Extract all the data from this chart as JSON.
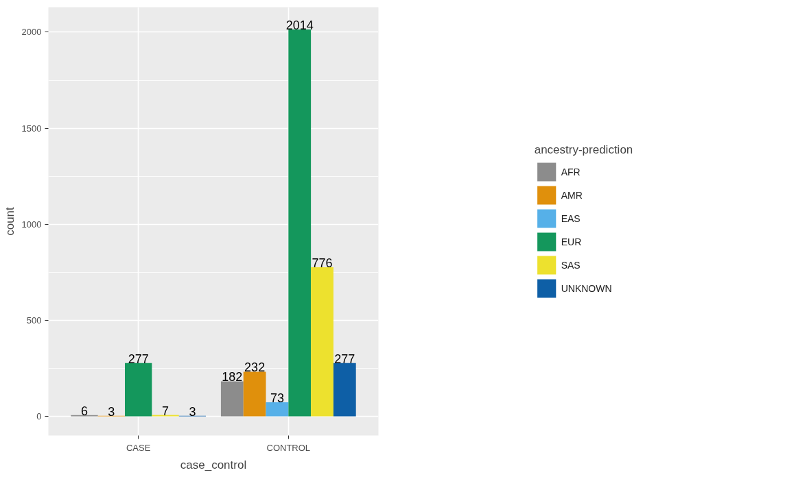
{
  "chart_data": {
    "type": "bar",
    "xlabel": "case_control",
    "ylabel": "count",
    "legend_title": "ancestry-prediction",
    "categories": [
      "CASE",
      "CONTROL"
    ],
    "series": [
      {
        "name": "AFR",
        "color": "#8c8c8c",
        "values": [
          6,
          182
        ]
      },
      {
        "name": "AMR",
        "color": "#e0900c",
        "values": [
          3,
          232
        ]
      },
      {
        "name": "EAS",
        "color": "#56b0e8",
        "values": [
          null,
          73
        ]
      },
      {
        "name": "EUR",
        "color": "#14975c",
        "values": [
          277,
          2014
        ]
      },
      {
        "name": "SAS",
        "color": "#ede12e",
        "values": [
          7,
          776
        ]
      },
      {
        "name": "UNKNOWN",
        "color": "#0e5fa6",
        "values": [
          3,
          277
        ]
      }
    ],
    "ylim": [
      -100,
      2130
    ],
    "yticks": [
      0,
      500,
      1000,
      1500,
      2000
    ],
    "grid": true,
    "legend": "right",
    "data_labels": true
  }
}
